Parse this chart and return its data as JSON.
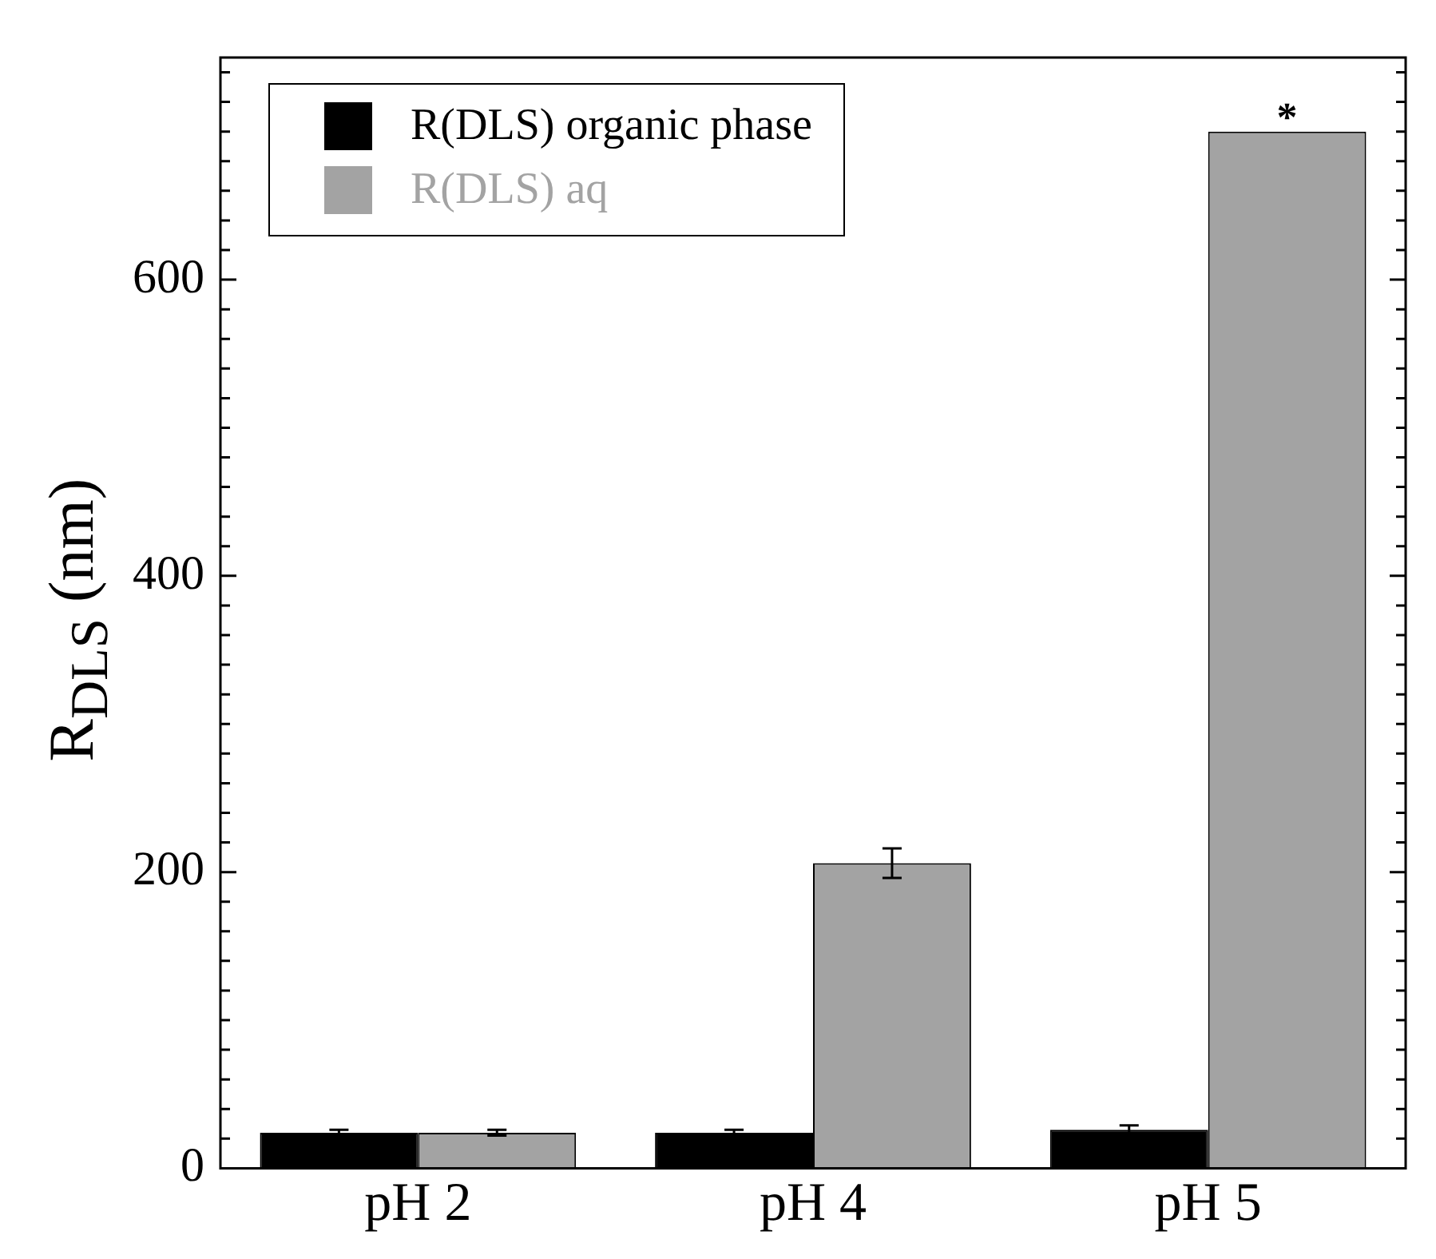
{
  "chart_data": {
    "type": "bar",
    "ylabel": "R$_{DLS}$ (nm)",
    "categories": [
      "pH 2",
      "pH 4",
      "pH 5"
    ],
    "series": [
      {
        "name": "R(DLS) organic phase",
        "color": "#000000",
        "values": [
          24,
          24,
          26
        ],
        "errors": [
          2,
          2,
          3
        ]
      },
      {
        "name": "R(DLS) aq",
        "color": "#a3a3a3",
        "values": [
          24,
          206,
          700
        ],
        "errors": [
          2,
          10,
          null
        ]
      }
    ],
    "ylim": [
      0,
      750
    ],
    "yticks": [
      0,
      {
        "value": 20,
        "label": null
      },
      {
        "value": 40,
        "label": null
      },
      {
        "value": 60,
        "label": null
      },
      {
        "value": 80,
        "label": null
      },
      {
        "value": 100,
        "label": null
      },
      {
        "value": 120,
        "label": null
      },
      {
        "value": 140,
        "label": null
      },
      {
        "value": 160,
        "label": null
      },
      {
        "value": 180,
        "label": null
      },
      200,
      {
        "value": 220,
        "label": null
      },
      {
        "value": 240,
        "label": null
      },
      {
        "value": 260,
        "label": null
      },
      {
        "value": 280,
        "label": null
      },
      {
        "value": 300,
        "label": null
      },
      {
        "value": 320,
        "label": null
      },
      {
        "value": 340,
        "label": null
      },
      {
        "value": 360,
        "label": null
      },
      {
        "value": 380,
        "label": null
      },
      400,
      {
        "value": 420,
        "label": null
      },
      {
        "value": 440,
        "label": null
      },
      {
        "value": 460,
        "label": null
      },
      {
        "value": 480,
        "label": null
      },
      {
        "value": 500,
        "label": null
      },
      {
        "value": 520,
        "label": null
      },
      {
        "value": 540,
        "label": null
      },
      {
        "value": 560,
        "label": null
      },
      {
        "value": 580,
        "label": null
      },
      600,
      {
        "value": 620,
        "label": null
      },
      {
        "value": 640,
        "label": null
      },
      {
        "value": 660,
        "label": null
      },
      {
        "value": 680,
        "label": null
      },
      {
        "value": 700,
        "label": null
      },
      {
        "value": 720,
        "label": null
      },
      {
        "value": 740,
        "label": null
      }
    ],
    "annotations": [
      {
        "text": "*",
        "x": "pH 5",
        "y": 700
      }
    ],
    "legend": "top left",
    "grid": false
  }
}
